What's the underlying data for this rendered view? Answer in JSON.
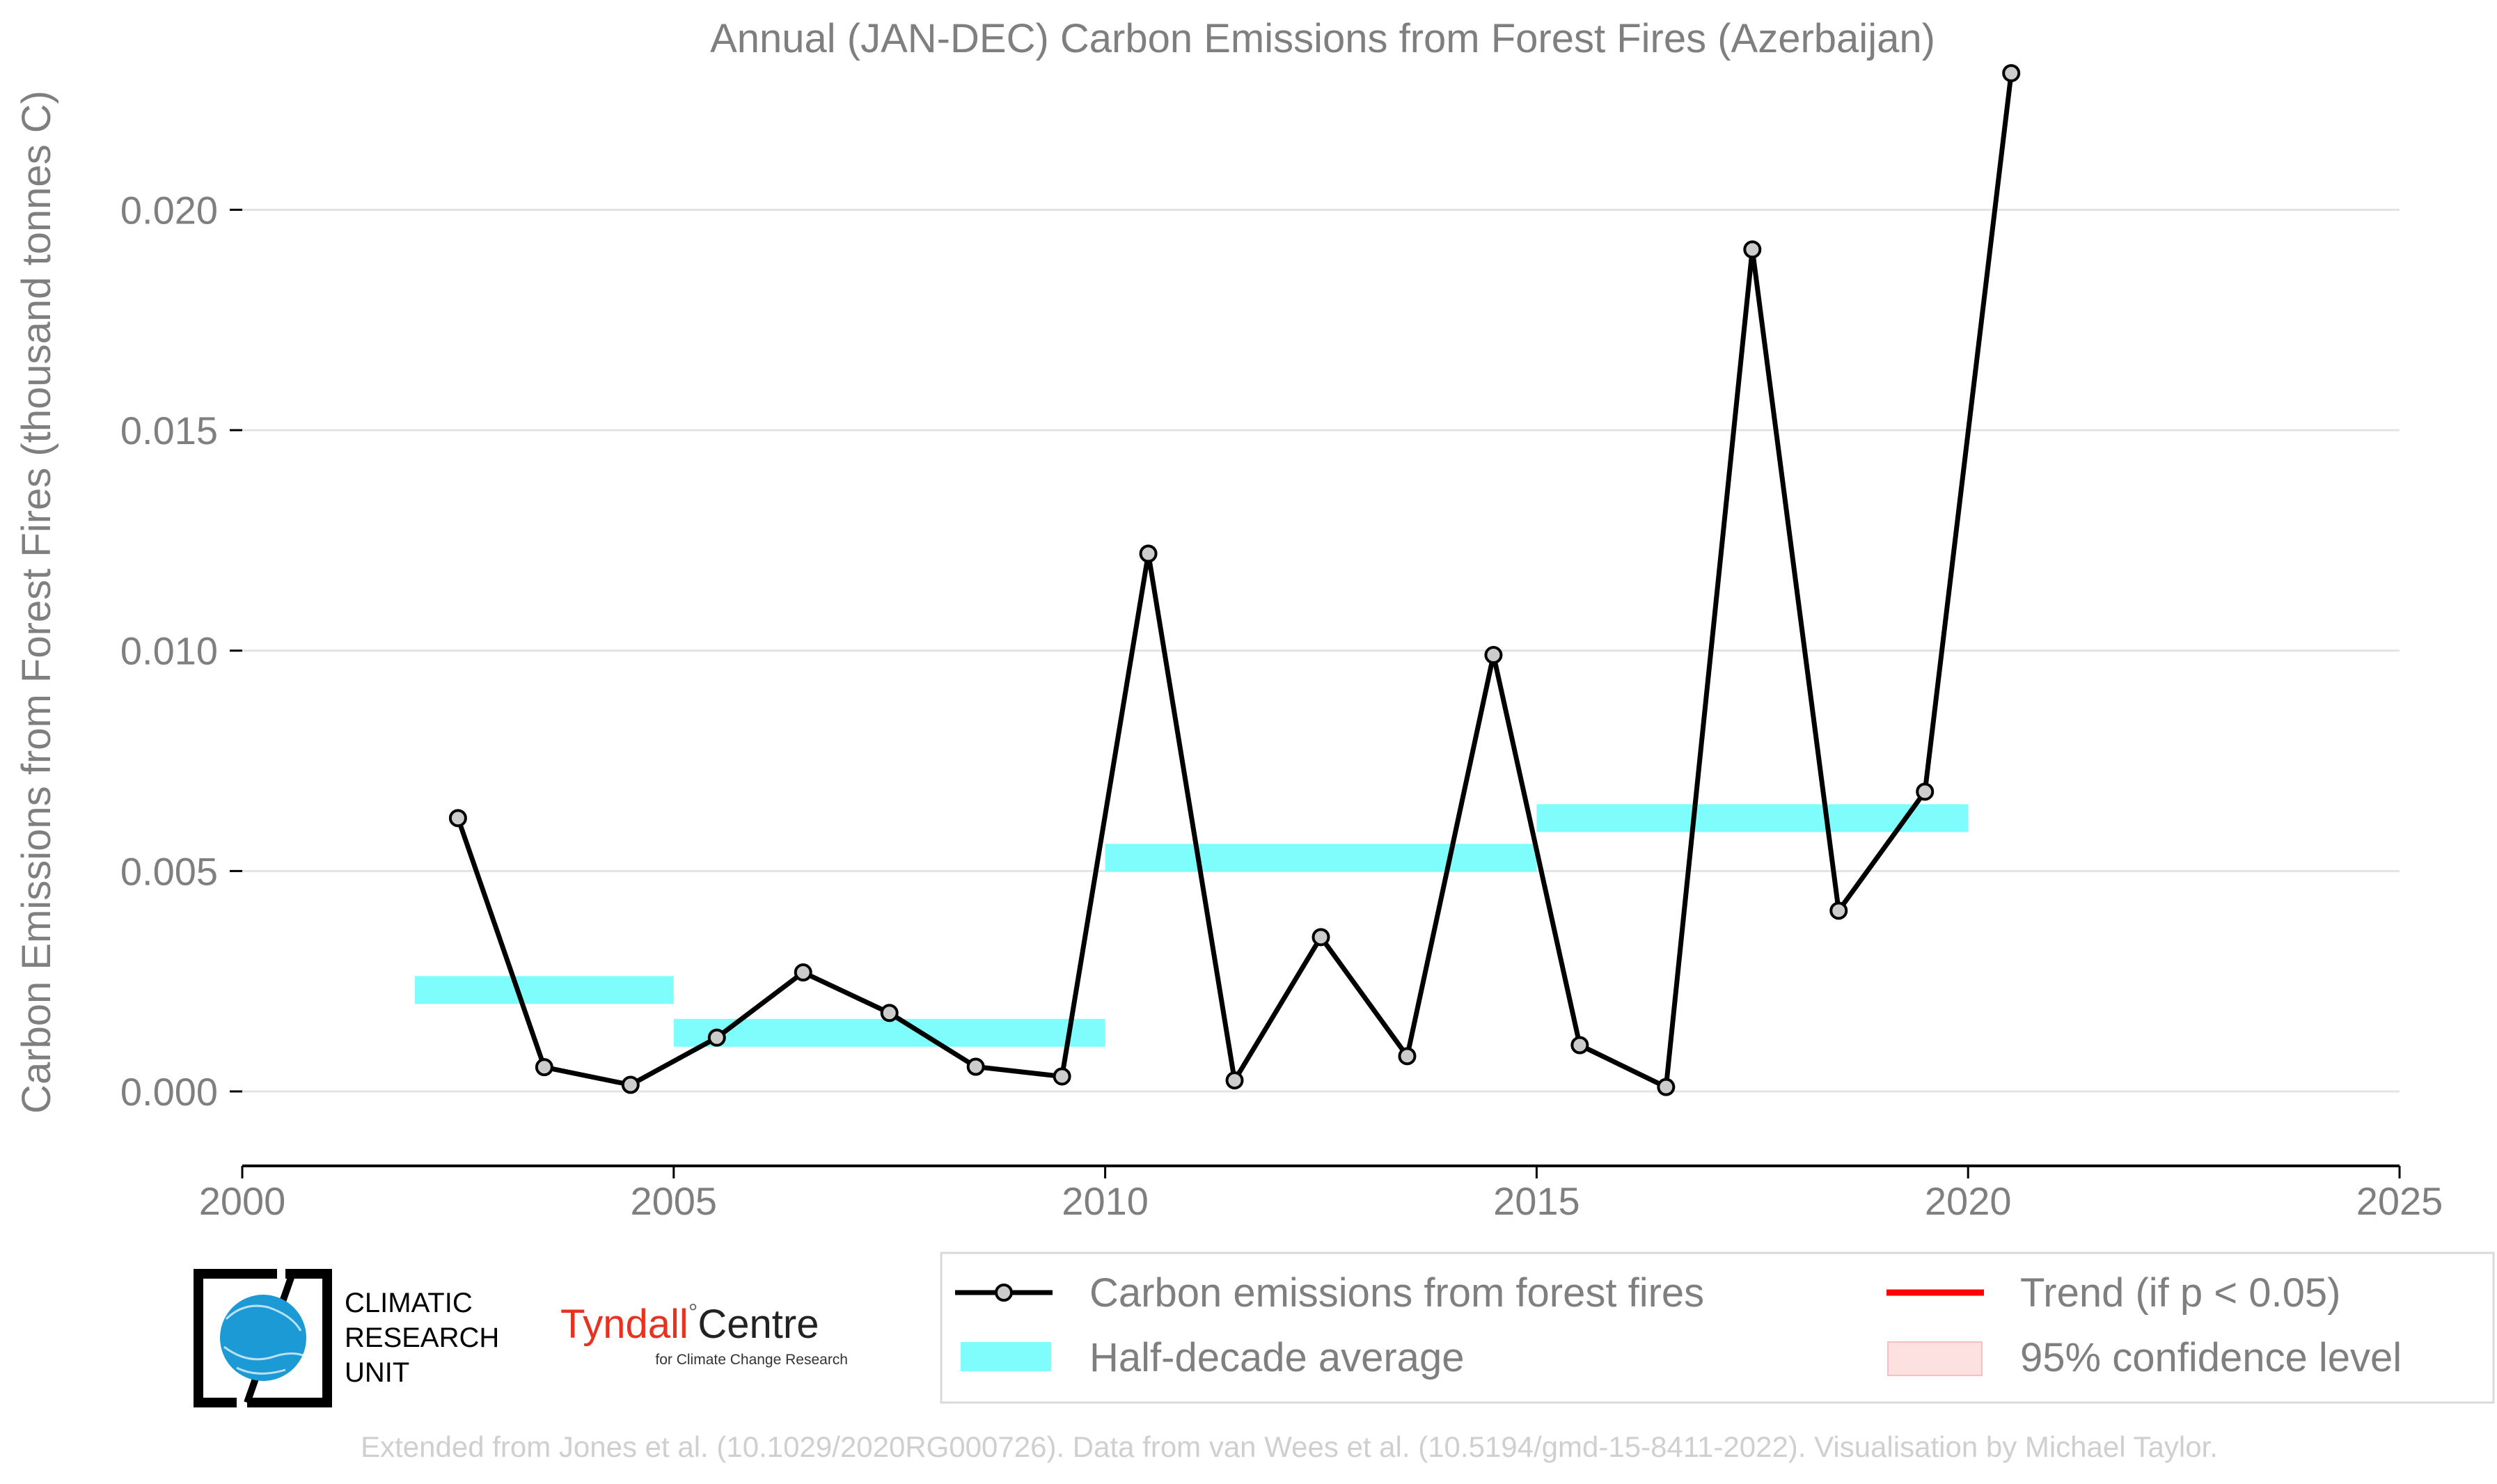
{
  "chart_data": {
    "type": "line",
    "title": "Annual (JAN-DEC) Carbon Emissions from Forest Fires (Azerbaijan)",
    "xlabel": "",
    "ylabel": "Carbon Emissions from Forest Fires (thousand tonnes C)",
    "xlim": [
      2000,
      2025
    ],
    "ylim": [
      -0.00175,
      0.024
    ],
    "x_ticks": [
      "2000",
      "2005",
      "2010",
      "2015",
      "2020",
      "2025"
    ],
    "y_ticks": [
      "0.000",
      "0.005",
      "0.010",
      "0.015",
      "0.020"
    ],
    "grid": "horizontal",
    "legend_position": "bottom-right",
    "series": [
      {
        "name": "Carbon emissions from forest fires",
        "color": "#000000",
        "x": [
          2002.5,
          2003.5,
          2004.5,
          2005.5,
          2006.5,
          2007.5,
          2008.5,
          2009.5,
          2010.5,
          2011.5,
          2012.5,
          2013.5,
          2014.5,
          2015.5,
          2016.5,
          2017.5,
          2018.5,
          2019.5,
          2020.5
        ],
        "y": [
          0.0062,
          0.00055,
          0.00015,
          0.00122,
          0.0027,
          0.00178,
          0.00056,
          0.00034,
          0.0122,
          0.00025,
          0.0035,
          0.0008,
          0.0099,
          0.00105,
          0.0001,
          0.0191,
          0.0041,
          0.0068,
          0.0231
        ]
      },
      {
        "name": "Half-decade average",
        "color": "#7ffdfd",
        "segments": [
          {
            "x_start": 2002,
            "x_end": 2005,
            "y": 0.0023
          },
          {
            "x_start": 2005,
            "x_end": 2010,
            "y": 0.00133
          },
          {
            "x_start": 2010,
            "x_end": 2015,
            "y": 0.0053
          },
          {
            "x_start": 2015,
            "x_end": 2020,
            "y": 0.0062
          }
        ]
      },
      {
        "name": "Trend (if p < 0.05)",
        "color": "#ff0000",
        "x": [],
        "y": []
      },
      {
        "name": "95% confidence level",
        "color": "#fde0e0",
        "x": [],
        "y": []
      }
    ]
  },
  "logos": {
    "cru_line1": "CLIMATIC",
    "cru_line2": "RESEARCH",
    "cru_line3": "UNIT",
    "tyndall_name": "Tyndall",
    "tyndall_degree": "°",
    "tyndall_centre": "Centre",
    "tyndall_sub": "for Climate Change Research",
    "tyndall_color": "#e8321f"
  },
  "footer": "Extended from Jones et al. (10.1029/2020RG000726). Data from van Wees et al. (10.5194/gmd-15-8411-2022). Visualisation by Michael Taylor."
}
